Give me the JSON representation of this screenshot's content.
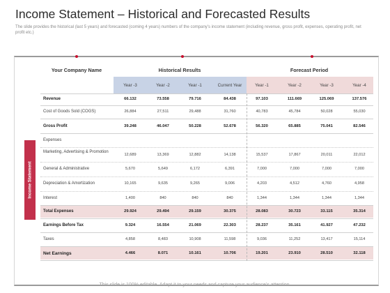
{
  "title": "Income Statement – Historical and Forecasted Results",
  "description": "The slide provides the historical (last 5 years) and forecasted (coming 4 years) numbers of the company’s income statement (including revenue, gross profit, expenses, operating profit, net profit etc.)",
  "header": {
    "company": "Your Company Name",
    "historical": "Historical Results",
    "forecast": "Forecast Period"
  },
  "years": [
    "Year -3",
    "Year -2",
    "Year -1",
    "Current Year",
    "Year -1",
    "Year -2",
    "Year -3",
    "Year -4"
  ],
  "side_label": "Income Statement",
  "rows": [
    {
      "label": "Revenue",
      "bold": true,
      "values": [
        "66.132",
        "73.558",
        "79.716",
        "84.438",
        "97.103",
        "111.669",
        "125.069",
        "137.576"
      ]
    },
    {
      "label": "Cost of Goods Sold (COGS)",
      "bold": false,
      "values": [
        "26,884",
        "27,511",
        "29,488",
        "31,760",
        "40,783",
        "45,784",
        "50,028",
        "55,030"
      ]
    },
    {
      "label": "Gross Profit",
      "bold": true,
      "values": [
        "39.248",
        "46.047",
        "50.228",
        "52.678",
        "56.320",
        "65.885",
        "75.041",
        "82.546"
      ]
    },
    {
      "label": "Expenses",
      "bold": false,
      "values": [
        "",
        "",
        "",
        "",
        "",
        "",
        "",
        ""
      ]
    },
    {
      "label": "Marketing, Advertising & Promotion",
      "bold": false,
      "values": [
        "12,689",
        "13,369",
        "12,882",
        "14,138",
        "15,537",
        "17,867",
        "20,011",
        "22,012"
      ]
    },
    {
      "label": "General & Administrative",
      "bold": false,
      "values": [
        "5,670",
        "5,649",
        "6,172",
        "6,391",
        "7,000",
        "7,000",
        "7,000",
        "7,000"
      ]
    },
    {
      "label": "Depreciation & Amortization",
      "bold": false,
      "values": [
        "10,165",
        "9,635",
        "9,265",
        "9,006",
        "4,203",
        "4,512",
        "4,760",
        "4,958"
      ]
    },
    {
      "label": "Interest",
      "bold": false,
      "values": [
        "1,400",
        "840",
        "840",
        "840",
        "1,344",
        "1,344",
        "1,344",
        "1,344"
      ]
    },
    {
      "label": "Total Expenses",
      "bold": true,
      "values": [
        "29.924",
        "29.494",
        "29.159",
        "30.375",
        "28.083",
        "30.723",
        "33.115",
        "35.314"
      ]
    },
    {
      "label": "Earnings Before Tax",
      "bold": true,
      "values": [
        "9.324",
        "16.554",
        "21.069",
        "22.303",
        "28.237",
        "35.161",
        "41.927",
        "47.232"
      ]
    },
    {
      "label": "Taxes",
      "bold": false,
      "values": [
        "4,858",
        "8,483",
        "10,908",
        "11,598",
        "9,036",
        "11,252",
        "13,417",
        "15,114"
      ]
    },
    {
      "label": "Net Earnings",
      "bold": true,
      "values": [
        "4.466",
        "8.071",
        "10.161",
        "10.706",
        "19.201",
        "23.910",
        "28.510",
        "32.118"
      ]
    }
  ],
  "footer": "This slide is 100% editable. Adapt it to your needs and capture your audience’s attention.",
  "colors": {
    "accent": "#c2304b",
    "historical_band": "#c8d3e6",
    "forecast_band": "#f0dada",
    "highlight_row": "#f1dcdc"
  }
}
